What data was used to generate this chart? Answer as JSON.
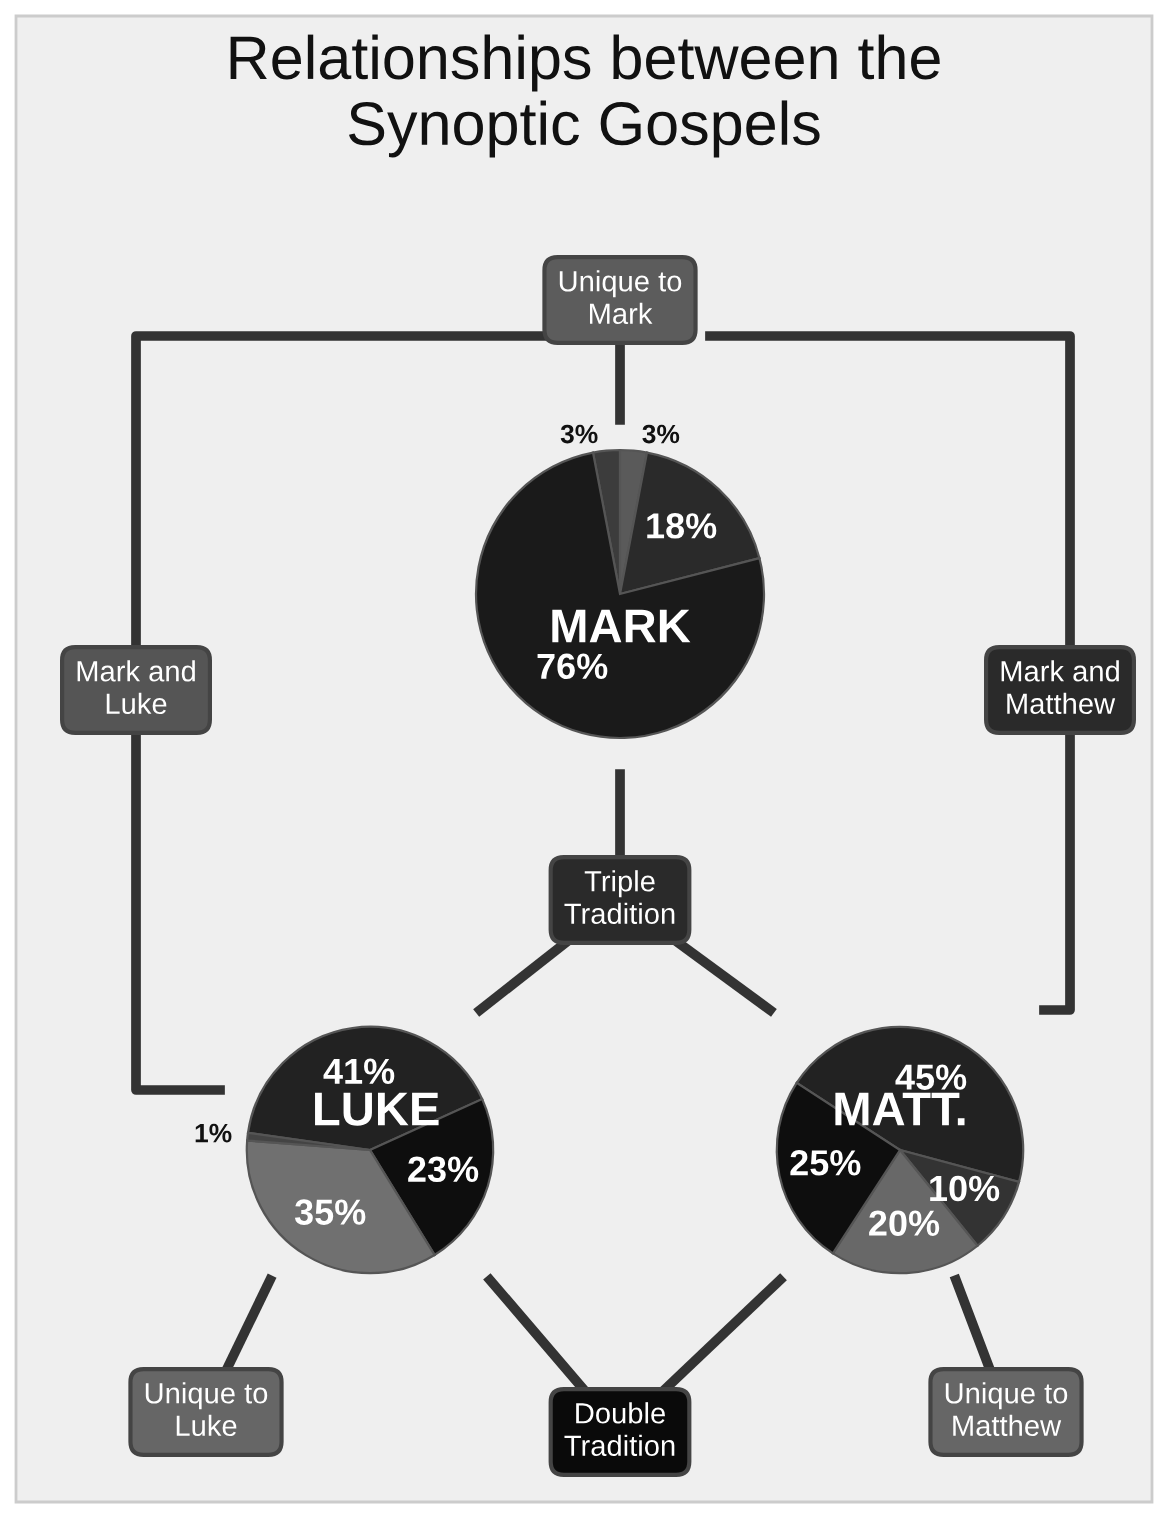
{
  "chart_data": [
    {
      "type": "other",
      "title": "Relationships between the\nSynoptic Gospels",
      "annotations": [
        "Unique to\nMark",
        "Mark and\nLuke",
        "Mark and\nMatthew",
        "Triple\nTradition",
        "Double\nTradition",
        "Unique to\nLuke",
        "Unique to\nMatthew"
      ]
    },
    {
      "type": "pie",
      "title": "MARK",
      "categories": [
        null,
        null,
        null,
        null
      ],
      "values": [
        3,
        3,
        18,
        76
      ],
      "colors": [
        "#3c3c3c",
        "#5a5a5a",
        "#2a2a2a",
        "#1a1a1a"
      ],
      "value_labels": [
        "3%",
        "3%",
        "18%",
        "76%"
      ]
    },
    {
      "type": "pie",
      "title": "LUKE",
      "categories": [
        null,
        null,
        null,
        null
      ],
      "values": [
        41,
        23,
        35,
        1
      ],
      "colors": [
        "#222222",
        "#0e0e0e",
        "#707070",
        "#444444"
      ],
      "value_labels": [
        "41%",
        "23%",
        "35%",
        "1%"
      ]
    },
    {
      "type": "pie",
      "title": "MATT.",
      "categories": [
        null,
        null,
        null,
        null
      ],
      "values": [
        45,
        10,
        20,
        25
      ],
      "colors": [
        "#222222",
        "#333333",
        "#686868",
        "#0e0e0e"
      ],
      "value_labels": [
        "45%",
        "10%",
        "20%",
        "25%"
      ]
    }
  ]
}
